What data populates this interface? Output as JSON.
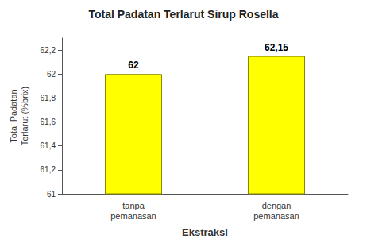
{
  "chart_data": {
    "type": "bar",
    "title": "Total Padatan Terlarut Sirup Rosella",
    "categories": [
      "tanpa\npemanasan",
      "dengan\npemanasan"
    ],
    "values": [
      62.0,
      62.15
    ],
    "value_labels": [
      "62",
      "62,15"
    ],
    "data_labels": true,
    "color": "#ffff00",
    "xlabel": "Ekstraksi",
    "ylabel": "Total Padatan\nTerlarut (%brix)",
    "ylim": [
      61.0,
      62.3
    ],
    "yticks": [
      61,
      {
        "value": 61.2,
        "label": "61,2"
      },
      {
        "value": 61.4,
        "label": "61,4"
      },
      {
        "value": 61.6,
        "label": "61,6"
      },
      {
        "value": 61.8,
        "label": "61,8"
      },
      62,
      {
        "value": 62.2,
        "label": "62,2"
      }
    ],
    "grid": false
  }
}
